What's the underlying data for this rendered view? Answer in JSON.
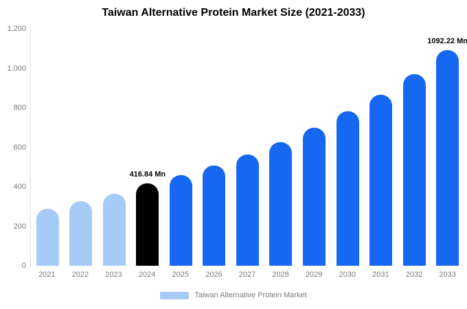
{
  "chart_data": {
    "type": "bar",
    "title": "Taiwan Alternative Protein Market Size (2021-2033)",
    "legend": "Taiwan Alternative Protein Market",
    "ylim": [
      0,
      1200
    ],
    "grid": false,
    "legend_position": "bottom",
    "colors": {
      "historical": "#a6cbf7",
      "base_year": "#000000",
      "forecast": "#1667f2",
      "legend_swatch": "#a6cbf7",
      "axis_text": "#7a7a7a"
    },
    "yticks": [
      {
        "value": 0,
        "label": "0"
      },
      {
        "value": 200,
        "label": "200"
      },
      {
        "value": 400,
        "label": "400"
      },
      {
        "value": 600,
        "label": "600"
      },
      {
        "value": 800,
        "label": "800"
      },
      {
        "value": 1000,
        "label": "1,000"
      },
      {
        "value": 1200,
        "label": "1,200"
      }
    ],
    "points": [
      {
        "category": "2021",
        "value": 290,
        "color": "#a6cbf7",
        "label": ""
      },
      {
        "category": "2022",
        "value": 327,
        "color": "#a6cbf7",
        "label": ""
      },
      {
        "category": "2023",
        "value": 365,
        "color": "#a6cbf7",
        "label": ""
      },
      {
        "category": "2024",
        "value": 416.84,
        "color": "#000000",
        "label": "416.84 Mn"
      },
      {
        "category": "2025",
        "value": 458,
        "color": "#1667f2",
        "label": ""
      },
      {
        "category": "2026",
        "value": 508,
        "color": "#1667f2",
        "label": ""
      },
      {
        "category": "2027",
        "value": 562,
        "color": "#1667f2",
        "label": ""
      },
      {
        "category": "2028",
        "value": 627,
        "color": "#1667f2",
        "label": ""
      },
      {
        "category": "2029",
        "value": 699,
        "color": "#1667f2",
        "label": ""
      },
      {
        "category": "2030",
        "value": 784,
        "color": "#1667f2",
        "label": ""
      },
      {
        "category": "2031",
        "value": 867,
        "color": "#1667f2",
        "label": ""
      },
      {
        "category": "2032",
        "value": 970,
        "color": "#1667f2",
        "label": ""
      },
      {
        "category": "2033",
        "value": 1092.22,
        "color": "#1667f2",
        "label": "1092.22 Mn"
      }
    ]
  }
}
